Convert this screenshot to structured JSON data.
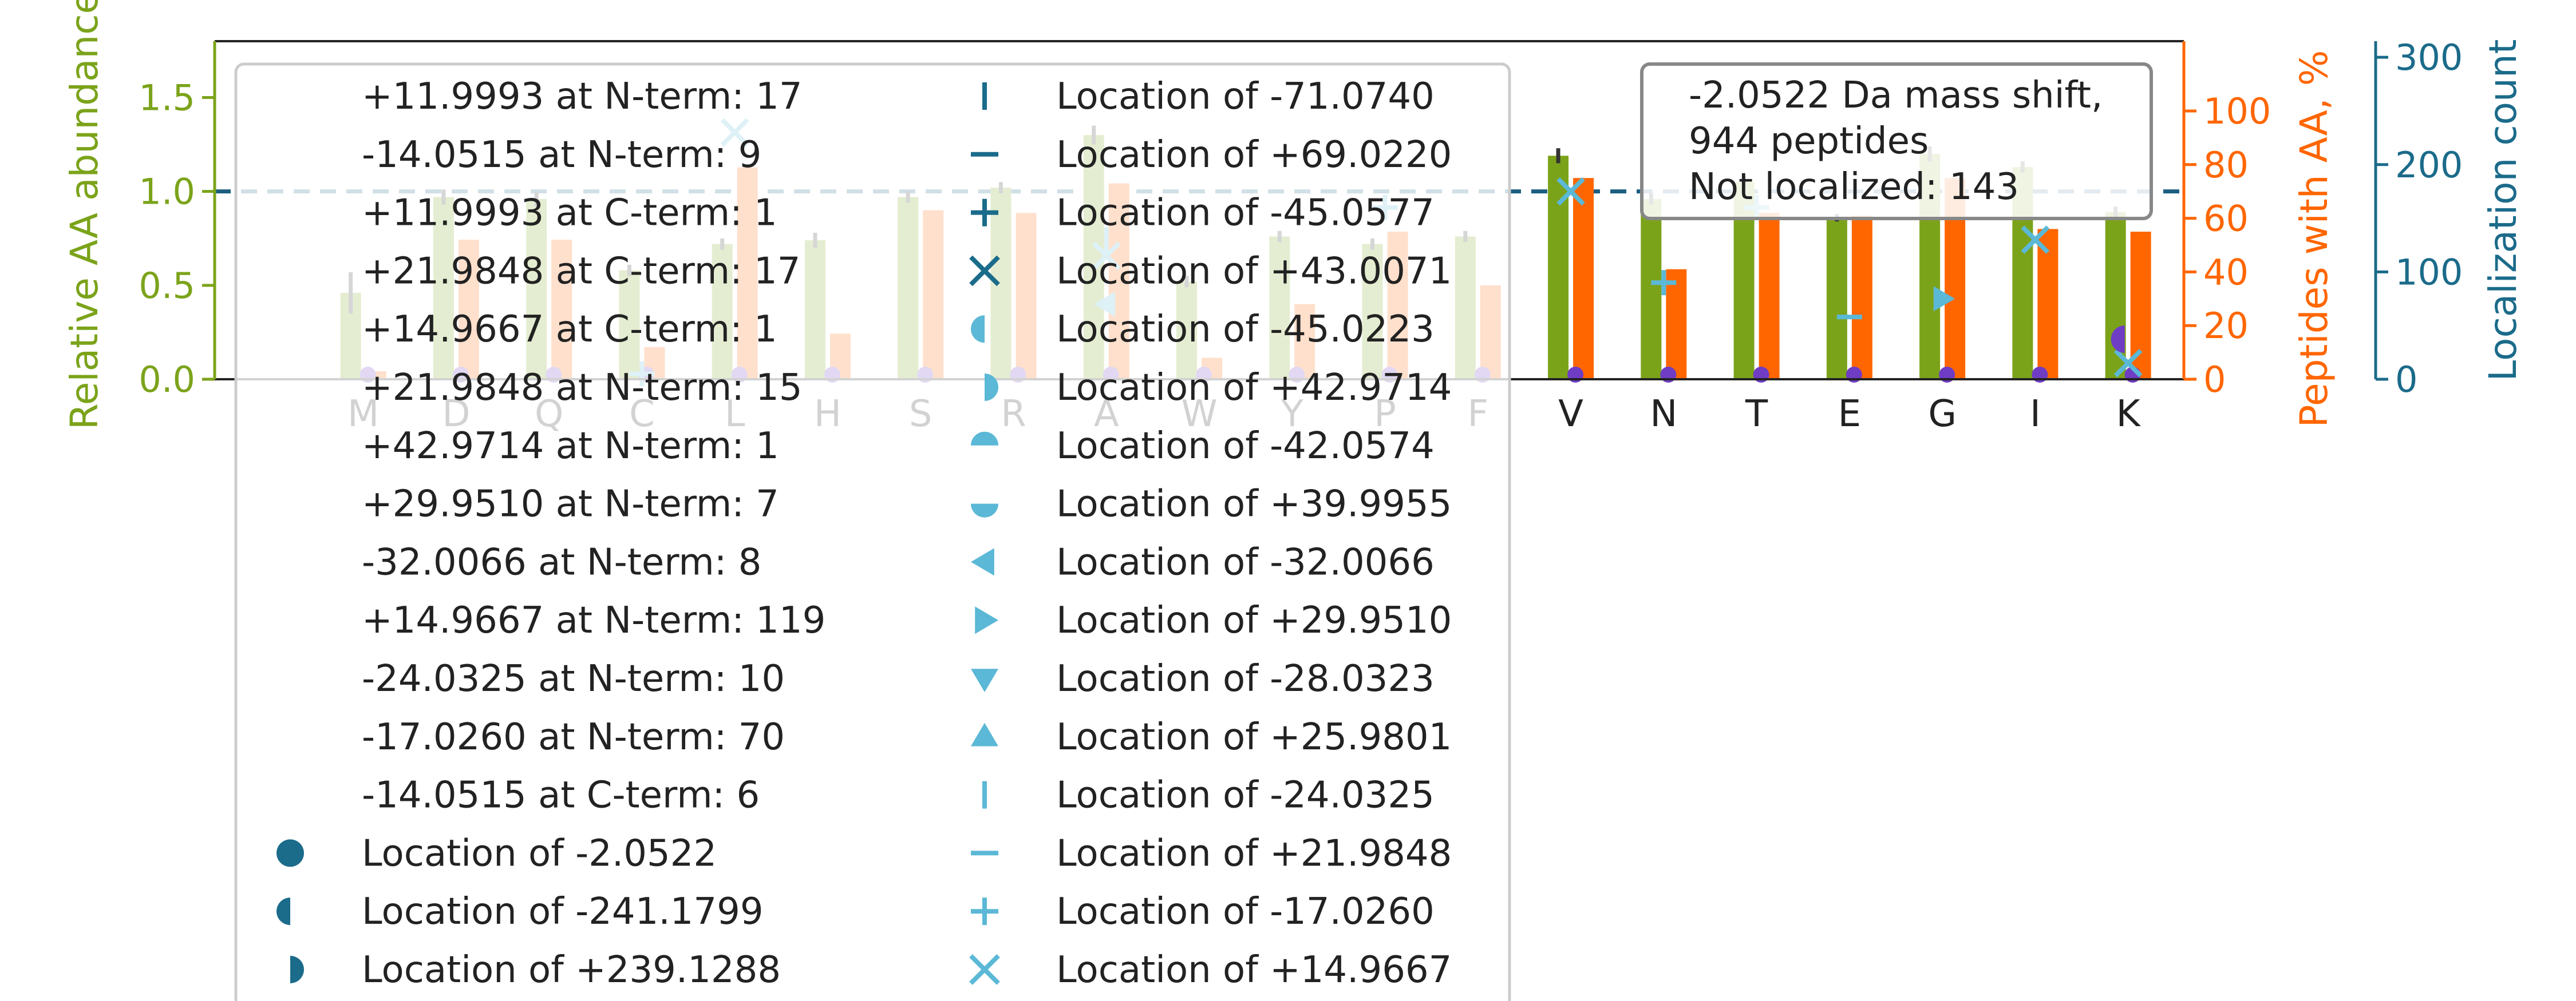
{
  "chart_data": {
    "type": "bar",
    "categories": [
      "M",
      "D",
      "Q",
      "C",
      "L",
      "H",
      "S",
      "R",
      "A",
      "W",
      "Y",
      "P",
      "F",
      "V",
      "N",
      "T",
      "E",
      "G",
      "I",
      "K"
    ],
    "left_axis": {
      "label": "Relative AA abundance",
      "ylim": [
        0,
        1.8
      ],
      "ticks": [
        0.0,
        0.5,
        1.0,
        1.5
      ],
      "tick_labels": [
        "0.0",
        "0.5",
        "1.0",
        "1.5"
      ]
    },
    "right_axis_1": {
      "label": "Peptides with AA, %",
      "ylim": [
        0,
        126
      ],
      "ticks": [
        0,
        20,
        40,
        60,
        80,
        100
      ],
      "tick_labels": [
        "0",
        "20",
        "40",
        "60",
        "80",
        "100"
      ]
    },
    "right_axis_2": {
      "label": "Localization count",
      "ylim": [
        0,
        315
      ],
      "ticks": [
        0,
        100,
        200,
        300
      ],
      "tick_labels": [
        "0",
        "100",
        "200",
        "300"
      ]
    },
    "series": [
      {
        "name": "Relative AA abundance",
        "axis": "left",
        "color": "#7ba31a",
        "error_color": "#333333",
        "values": [
          0.46,
          0.97,
          0.96,
          0.58,
          0.72,
          0.74,
          0.97,
          1.02,
          1.3,
          0.52,
          0.76,
          0.72,
          0.76,
          1.19,
          0.96,
          1.05,
          0.86,
          1.2,
          1.13,
          0.89
        ],
        "errors": [
          0.11,
          0.04,
          0.04,
          0.03,
          0.03,
          0.04,
          0.03,
          0.03,
          0.05,
          0.03,
          0.03,
          0.03,
          0.03,
          0.04,
          0.03,
          0.03,
          0.02,
          0.04,
          0.03,
          0.03
        ]
      },
      {
        "name": "Peptides with AA, %",
        "axis": "right_1",
        "color": "#ff6600",
        "values": [
          3,
          52,
          52,
          12,
          79,
          17,
          63,
          62,
          73,
          8,
          28,
          55,
          35,
          75,
          41,
          62,
          61,
          75,
          56,
          55
        ]
      }
    ],
    "reference_lines": [
      {
        "axis": "left",
        "y": 1.0,
        "style": "dashed",
        "color": "#1b5e80"
      }
    ],
    "localization_markers": [
      {
        "category": "L",
        "shape": "x",
        "value": 230
      },
      {
        "category": "P",
        "shape": "plus",
        "value": 160
      },
      {
        "category": "A",
        "shape": "tri-left",
        "value": 70
      },
      {
        "category": "A",
        "shape": "x",
        "value": 115
      },
      {
        "category": "A",
        "shape": "vline",
        "value": 130
      },
      {
        "category": "C",
        "shape": "plus",
        "value": 5
      },
      {
        "category": "V",
        "shape": "x",
        "value": 175
      },
      {
        "category": "N",
        "shape": "plus",
        "value": 90
      },
      {
        "category": "T",
        "shape": "plus",
        "value": 160
      },
      {
        "category": "E",
        "shape": "hline",
        "value": 58
      },
      {
        "category": "G",
        "shape": "tri-right",
        "value": 75
      },
      {
        "category": "I",
        "shape": "x",
        "value": 130
      },
      {
        "category": "K",
        "shape": "x",
        "value": 15
      }
    ],
    "legend": {
      "placement": "upper-left",
      "left_column": [
        {
          "marker": "none",
          "label": "+11.9993 at N-term: 17"
        },
        {
          "marker": "none",
          "label": "-14.0515 at N-term: 9"
        },
        {
          "marker": "none",
          "label": "+11.9993 at C-term: 1"
        },
        {
          "marker": "none",
          "label": "+21.9848 at C-term: 17"
        },
        {
          "marker": "none",
          "label": "+14.9667 at C-term: 1"
        },
        {
          "marker": "none",
          "label": "+21.9848 at N-term: 15"
        },
        {
          "marker": "none",
          "label": "+42.9714 at N-term: 1"
        },
        {
          "marker": "none",
          "label": "+29.9510 at N-term: 7"
        },
        {
          "marker": "none",
          "label": "-32.0066 at N-term: 8"
        },
        {
          "marker": "none",
          "label": "+14.9667 at N-term: 119"
        },
        {
          "marker": "none",
          "label": "-24.0325 at N-term: 10"
        },
        {
          "marker": "none",
          "label": "-17.0260 at N-term: 70"
        },
        {
          "marker": "none",
          "label": "-14.0515 at C-term: 6"
        },
        {
          "marker": "circle",
          "color": "#1b6b8a",
          "label": "Location of -2.0522"
        },
        {
          "marker": "half-left",
          "color": "#1b6b8a",
          "label": "Location of -241.1799"
        },
        {
          "marker": "half-right",
          "color": "#1b6b8a",
          "label": "Location of +239.1288"
        }
      ],
      "right_column": [
        {
          "marker": "vline",
          "color": "#1b6b8a",
          "label": "Location of -71.0740"
        },
        {
          "marker": "hline",
          "color": "#1b6b8a",
          "label": "Location of +69.0220"
        },
        {
          "marker": "plus",
          "color": "#1b6b8a",
          "label": "Location of -45.0577"
        },
        {
          "marker": "x",
          "color": "#1b6b8a",
          "label": "Location of +43.0071"
        },
        {
          "marker": "half-left",
          "color": "#5bb8d6",
          "label": "Location of -45.0223"
        },
        {
          "marker": "half-right",
          "color": "#5bb8d6",
          "label": "Location of +42.9714"
        },
        {
          "marker": "half-top",
          "color": "#5bb8d6",
          "label": "Location of -42.0574"
        },
        {
          "marker": "half-bottom",
          "color": "#5bb8d6",
          "label": "Location of +39.9955"
        },
        {
          "marker": "tri-left",
          "color": "#5bb8d6",
          "label": "Location of -32.0066"
        },
        {
          "marker": "tri-right",
          "color": "#5bb8d6",
          "label": "Location of +29.9510"
        },
        {
          "marker": "tri-down",
          "color": "#5bb8d6",
          "label": "Location of -28.0323"
        },
        {
          "marker": "tri-up",
          "color": "#5bb8d6",
          "label": "Location of +25.9801"
        },
        {
          "marker": "vline",
          "color": "#5bb8d6",
          "label": "Location of -24.0325"
        },
        {
          "marker": "hline",
          "color": "#5bb8d6",
          "label": "Location of +21.9848"
        },
        {
          "marker": "plus",
          "color": "#5bb8d6",
          "label": "Location of -17.0260"
        },
        {
          "marker": "x",
          "color": "#5bb8d6",
          "label": "Location of +14.9667"
        }
      ]
    },
    "annotation": {
      "lines": [
        "-2.0522 Da mass shift,",
        "944 peptides",
        "Not localized: 143"
      ]
    }
  },
  "colors": {
    "olive": "#7ba31a",
    "orange": "#ff6600",
    "teal": "#1b6b8a",
    "light_teal": "#5bb8d6",
    "purple": "#6f3cc4"
  }
}
